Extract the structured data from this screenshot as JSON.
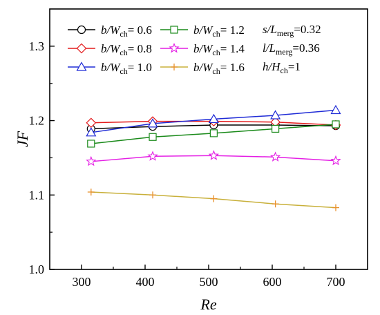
{
  "chart_data": {
    "type": "line",
    "xlabel": "Re",
    "ylabel": "JF",
    "xlim": [
      250,
      750
    ],
    "ylim": [
      1.0,
      1.35
    ],
    "x_ticks": [
      "300",
      "400",
      "500",
      "600",
      "700"
    ],
    "y_ticks": [
      "1.0",
      "1.1",
      "1.2",
      "1.3"
    ],
    "x": [
      315,
      412,
      508,
      605,
      700
    ],
    "legend_placement": "top-left",
    "series": [
      {
        "name": "b/W_ch= 0.6",
        "label_parts": [
          "b/",
          "W",
          "ch",
          "= 0.6"
        ],
        "color": "#000000",
        "marker": "circle",
        "values": [
          1.189,
          1.192,
          1.194,
          1.194,
          1.193
        ]
      },
      {
        "name": "b/W_ch= 0.8",
        "label_parts": [
          "b/",
          "W",
          "ch",
          "= 0.8"
        ],
        "color": "#e31a1c",
        "marker": "diamond",
        "values": [
          1.197,
          1.199,
          1.199,
          1.198,
          1.194
        ]
      },
      {
        "name": "b/W_ch= 1.0",
        "label_parts": [
          "b/",
          "W",
          "ch",
          "= 1.0"
        ],
        "color": "#1f2bd6",
        "marker": "triangle",
        "values": [
          1.184,
          1.196,
          1.202,
          1.207,
          1.214
        ]
      },
      {
        "name": "b/W_ch= 1.2",
        "label_parts": [
          "b/",
          "W",
          "ch",
          "= 1.2"
        ],
        "color": "#1a8a1a",
        "marker": "square",
        "values": [
          1.169,
          1.178,
          1.183,
          1.189,
          1.195
        ]
      },
      {
        "name": "b/W_ch= 1.4",
        "label_parts": [
          "b/",
          "W",
          "ch",
          "= 1.4"
        ],
        "color": "#e41ee4",
        "marker": "star",
        "values": [
          1.145,
          1.152,
          1.153,
          1.151,
          1.146
        ]
      },
      {
        "name": "b/W_ch= 1.6",
        "label_parts": [
          "b/",
          "W",
          "ch",
          "= 1.6"
        ],
        "color": "#e8902a",
        "line_color": "#c8b03a",
        "marker": "plus",
        "values": [
          1.104,
          1.1,
          1.095,
          1.088,
          1.083
        ]
      }
    ],
    "annotations": [
      {
        "parts": [
          "s/",
          "L",
          "merg",
          "=0.32"
        ]
      },
      {
        "parts": [
          "l/",
          "L",
          "merg",
          "=0.36"
        ]
      },
      {
        "parts": [
          "h/",
          "H",
          "ch",
          "=1"
        ]
      }
    ]
  }
}
